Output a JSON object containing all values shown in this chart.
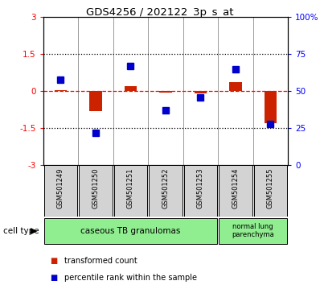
{
  "title": "GDS4256 / 202122_3p_s_at",
  "samples": [
    "GSM501249",
    "GSM501250",
    "GSM501251",
    "GSM501252",
    "GSM501253",
    "GSM501254",
    "GSM501255"
  ],
  "transformed_count": [
    0.05,
    -0.82,
    0.22,
    -0.05,
    -0.1,
    0.38,
    -1.28
  ],
  "percentile_rank": [
    58,
    22,
    67,
    37,
    46,
    65,
    28
  ],
  "ylim_left": [
    -3,
    3
  ],
  "ylim_right": [
    0,
    100
  ],
  "yticks_left": [
    -3,
    -1.5,
    0,
    1.5,
    3
  ],
  "yticks_right": [
    0,
    25,
    50,
    75,
    100
  ],
  "ytick_labels_right": [
    "0",
    "25",
    "50",
    "75",
    "100%"
  ],
  "ytick_labels_left": [
    "-3",
    "-1.5",
    "0",
    "1.5",
    "3"
  ],
  "red_color": "#CC2200",
  "blue_color": "#0000CC",
  "bar_width": 0.35,
  "marker_size": 6,
  "background_color": "#ffffff",
  "legend_red": "transformed count",
  "legend_blue": "percentile rank within the sample",
  "cell_group1_label": "caseous TB granulomas",
  "cell_group2_label": "normal lung\nparenchyma",
  "cell_color": "#90EE90",
  "sample_box_color": "#d3d3d3"
}
